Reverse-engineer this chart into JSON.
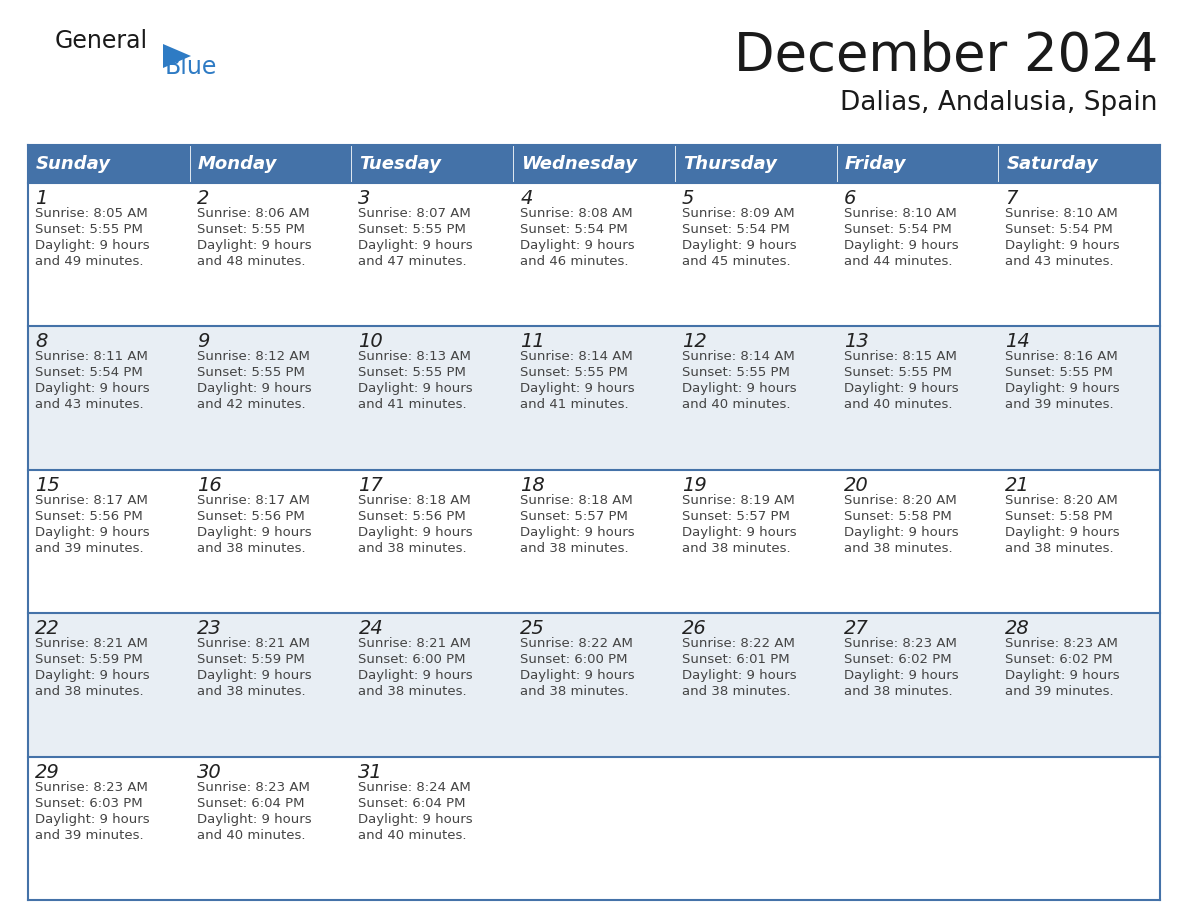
{
  "title": "December 2024",
  "subtitle": "Dalias, Andalusia, Spain",
  "header_color": "#4472a8",
  "header_text_color": "#ffffff",
  "day_names": [
    "Sunday",
    "Monday",
    "Tuesday",
    "Wednesday",
    "Thursday",
    "Friday",
    "Saturday"
  ],
  "row_colors": [
    "#ffffff",
    "#e8eef4"
  ],
  "date_color": "#222222",
  "text_color": "#444444",
  "grid_color": "#4472a8",
  "days": [
    {
      "date": 1,
      "col": 0,
      "row": 0,
      "sunrise": "8:05 AM",
      "sunset": "5:55 PM",
      "daylight_h": "9 hours",
      "daylight_m": "49 minutes."
    },
    {
      "date": 2,
      "col": 1,
      "row": 0,
      "sunrise": "8:06 AM",
      "sunset": "5:55 PM",
      "daylight_h": "9 hours",
      "daylight_m": "48 minutes."
    },
    {
      "date": 3,
      "col": 2,
      "row": 0,
      "sunrise": "8:07 AM",
      "sunset": "5:55 PM",
      "daylight_h": "9 hours",
      "daylight_m": "47 minutes."
    },
    {
      "date": 4,
      "col": 3,
      "row": 0,
      "sunrise": "8:08 AM",
      "sunset": "5:54 PM",
      "daylight_h": "9 hours",
      "daylight_m": "46 minutes."
    },
    {
      "date": 5,
      "col": 4,
      "row": 0,
      "sunrise": "8:09 AM",
      "sunset": "5:54 PM",
      "daylight_h": "9 hours",
      "daylight_m": "45 minutes."
    },
    {
      "date": 6,
      "col": 5,
      "row": 0,
      "sunrise": "8:10 AM",
      "sunset": "5:54 PM",
      "daylight_h": "9 hours",
      "daylight_m": "44 minutes."
    },
    {
      "date": 7,
      "col": 6,
      "row": 0,
      "sunrise": "8:10 AM",
      "sunset": "5:54 PM",
      "daylight_h": "9 hours",
      "daylight_m": "43 minutes."
    },
    {
      "date": 8,
      "col": 0,
      "row": 1,
      "sunrise": "8:11 AM",
      "sunset": "5:54 PM",
      "daylight_h": "9 hours",
      "daylight_m": "43 minutes."
    },
    {
      "date": 9,
      "col": 1,
      "row": 1,
      "sunrise": "8:12 AM",
      "sunset": "5:55 PM",
      "daylight_h": "9 hours",
      "daylight_m": "42 minutes."
    },
    {
      "date": 10,
      "col": 2,
      "row": 1,
      "sunrise": "8:13 AM",
      "sunset": "5:55 PM",
      "daylight_h": "9 hours",
      "daylight_m": "41 minutes."
    },
    {
      "date": 11,
      "col": 3,
      "row": 1,
      "sunrise": "8:14 AM",
      "sunset": "5:55 PM",
      "daylight_h": "9 hours",
      "daylight_m": "41 minutes."
    },
    {
      "date": 12,
      "col": 4,
      "row": 1,
      "sunrise": "8:14 AM",
      "sunset": "5:55 PM",
      "daylight_h": "9 hours",
      "daylight_m": "40 minutes."
    },
    {
      "date": 13,
      "col": 5,
      "row": 1,
      "sunrise": "8:15 AM",
      "sunset": "5:55 PM",
      "daylight_h": "9 hours",
      "daylight_m": "40 minutes."
    },
    {
      "date": 14,
      "col": 6,
      "row": 1,
      "sunrise": "8:16 AM",
      "sunset": "5:55 PM",
      "daylight_h": "9 hours",
      "daylight_m": "39 minutes."
    },
    {
      "date": 15,
      "col": 0,
      "row": 2,
      "sunrise": "8:17 AM",
      "sunset": "5:56 PM",
      "daylight_h": "9 hours",
      "daylight_m": "39 minutes."
    },
    {
      "date": 16,
      "col": 1,
      "row": 2,
      "sunrise": "8:17 AM",
      "sunset": "5:56 PM",
      "daylight_h": "9 hours",
      "daylight_m": "38 minutes."
    },
    {
      "date": 17,
      "col": 2,
      "row": 2,
      "sunrise": "8:18 AM",
      "sunset": "5:56 PM",
      "daylight_h": "9 hours",
      "daylight_m": "38 minutes."
    },
    {
      "date": 18,
      "col": 3,
      "row": 2,
      "sunrise": "8:18 AM",
      "sunset": "5:57 PM",
      "daylight_h": "9 hours",
      "daylight_m": "38 minutes."
    },
    {
      "date": 19,
      "col": 4,
      "row": 2,
      "sunrise": "8:19 AM",
      "sunset": "5:57 PM",
      "daylight_h": "9 hours",
      "daylight_m": "38 minutes."
    },
    {
      "date": 20,
      "col": 5,
      "row": 2,
      "sunrise": "8:20 AM",
      "sunset": "5:58 PM",
      "daylight_h": "9 hours",
      "daylight_m": "38 minutes."
    },
    {
      "date": 21,
      "col": 6,
      "row": 2,
      "sunrise": "8:20 AM",
      "sunset": "5:58 PM",
      "daylight_h": "9 hours",
      "daylight_m": "38 minutes."
    },
    {
      "date": 22,
      "col": 0,
      "row": 3,
      "sunrise": "8:21 AM",
      "sunset": "5:59 PM",
      "daylight_h": "9 hours",
      "daylight_m": "38 minutes."
    },
    {
      "date": 23,
      "col": 1,
      "row": 3,
      "sunrise": "8:21 AM",
      "sunset": "5:59 PM",
      "daylight_h": "9 hours",
      "daylight_m": "38 minutes."
    },
    {
      "date": 24,
      "col": 2,
      "row": 3,
      "sunrise": "8:21 AM",
      "sunset": "6:00 PM",
      "daylight_h": "9 hours",
      "daylight_m": "38 minutes."
    },
    {
      "date": 25,
      "col": 3,
      "row": 3,
      "sunrise": "8:22 AM",
      "sunset": "6:00 PM",
      "daylight_h": "9 hours",
      "daylight_m": "38 minutes."
    },
    {
      "date": 26,
      "col": 4,
      "row": 3,
      "sunrise": "8:22 AM",
      "sunset": "6:01 PM",
      "daylight_h": "9 hours",
      "daylight_m": "38 minutes."
    },
    {
      "date": 27,
      "col": 5,
      "row": 3,
      "sunrise": "8:23 AM",
      "sunset": "6:02 PM",
      "daylight_h": "9 hours",
      "daylight_m": "38 minutes."
    },
    {
      "date": 28,
      "col": 6,
      "row": 3,
      "sunrise": "8:23 AM",
      "sunset": "6:02 PM",
      "daylight_h": "9 hours",
      "daylight_m": "39 minutes."
    },
    {
      "date": 29,
      "col": 0,
      "row": 4,
      "sunrise": "8:23 AM",
      "sunset": "6:03 PM",
      "daylight_h": "9 hours",
      "daylight_m": "39 minutes."
    },
    {
      "date": 30,
      "col": 1,
      "row": 4,
      "sunrise": "8:23 AM",
      "sunset": "6:04 PM",
      "daylight_h": "9 hours",
      "daylight_m": "40 minutes."
    },
    {
      "date": 31,
      "col": 2,
      "row": 4,
      "sunrise": "8:24 AM",
      "sunset": "6:04 PM",
      "daylight_h": "9 hours",
      "daylight_m": "40 minutes."
    }
  ]
}
